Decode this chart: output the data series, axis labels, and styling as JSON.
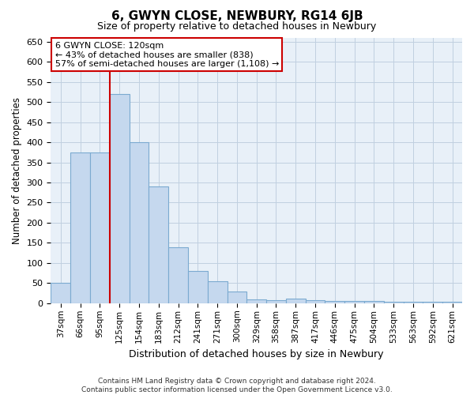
{
  "title": "6, GWYN CLOSE, NEWBURY, RG14 6JB",
  "subtitle": "Size of property relative to detached houses in Newbury",
  "xlabel": "Distribution of detached houses by size in Newbury",
  "ylabel": "Number of detached properties",
  "footer_line1": "Contains HM Land Registry data © Crown copyright and database right 2024.",
  "footer_line2": "Contains public sector information licensed under the Open Government Licence v3.0.",
  "categories": [
    "37sqm",
    "66sqm",
    "95sqm",
    "125sqm",
    "154sqm",
    "183sqm",
    "212sqm",
    "241sqm",
    "271sqm",
    "300sqm",
    "329sqm",
    "358sqm",
    "387sqm",
    "417sqm",
    "446sqm",
    "475sqm",
    "504sqm",
    "533sqm",
    "563sqm",
    "592sqm",
    "621sqm"
  ],
  "values": [
    50,
    375,
    375,
    520,
    400,
    290,
    140,
    80,
    55,
    30,
    10,
    8,
    12,
    8,
    5,
    5,
    5,
    3,
    3,
    3,
    3
  ],
  "bar_color": "#c5d8ee",
  "bar_edge_color": "#7baad0",
  "annotation_line1": "6 GWYN CLOSE: 120sqm",
  "annotation_line2": "← 43% of detached houses are smaller (838)",
  "annotation_line3": "57% of semi-detached houses are larger (1,108) →",
  "annotation_box_color": "#ffffff",
  "annotation_box_edge_color": "#cc0000",
  "vline_x": 2.5,
  "vline_color": "#cc0000",
  "ylim": [
    0,
    660
  ],
  "yticks": [
    0,
    50,
    100,
    150,
    200,
    250,
    300,
    350,
    400,
    450,
    500,
    550,
    600,
    650
  ],
  "grid_color": "#c0d0e0",
  "background_color": "#e8f0f8",
  "title_fontsize": 11,
  "subtitle_fontsize": 9
}
